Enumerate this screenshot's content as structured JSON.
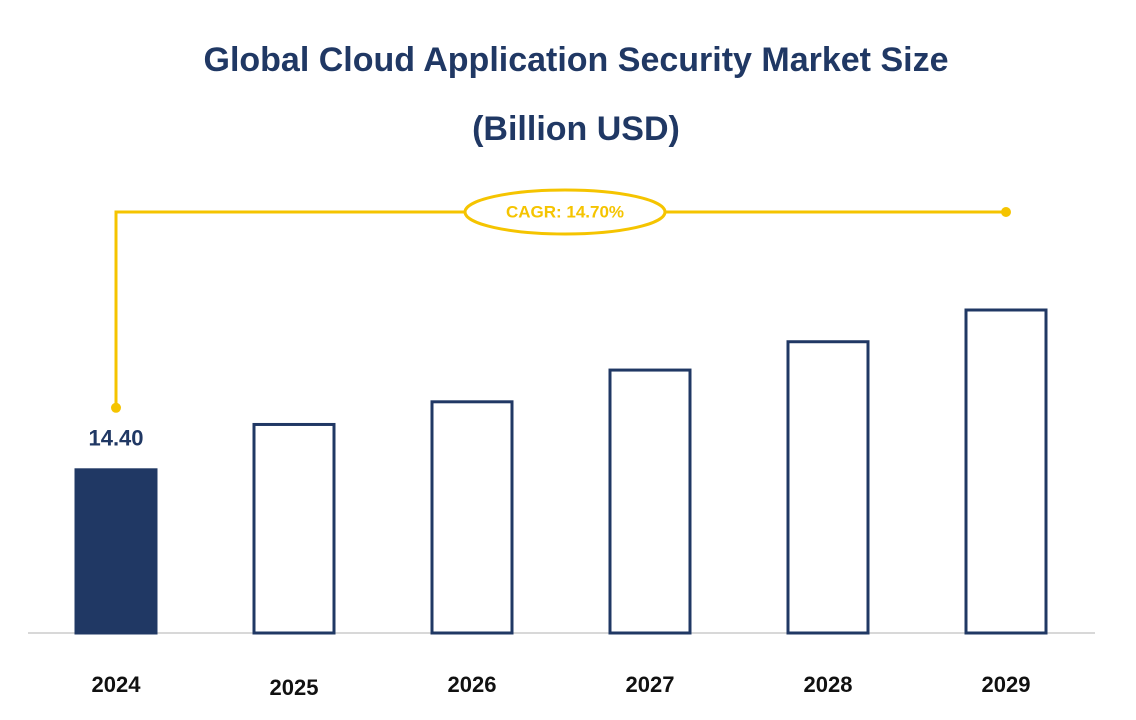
{
  "chart_data": {
    "type": "bar",
    "title": "Global Cloud Application Security Market Size",
    "subtitle": "(Billion USD)",
    "categories": [
      "2024",
      "2025",
      "2026",
      "2027",
      "2028",
      "2029"
    ],
    "values": [
      14.4,
      18.4,
      20.4,
      23.2,
      25.7,
      28.5
    ],
    "value_labels": [
      "14.40",
      null,
      null,
      null,
      null,
      null
    ],
    "color": "#203864",
    "annotation": "CAGR: 14.70%",
    "annotation_color": "#f5c400"
  }
}
